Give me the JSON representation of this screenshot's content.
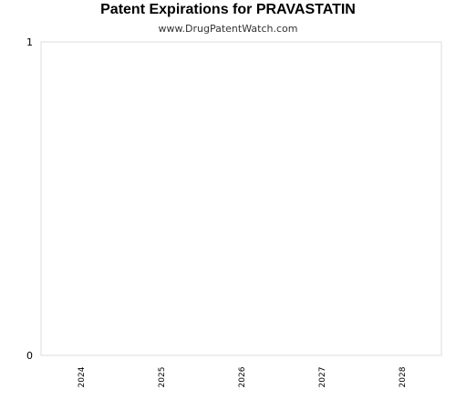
{
  "chart_data": {
    "type": "bar",
    "title": "Patent Expirations for PRAVASTATIN",
    "subtitle": "www.DrugPatentWatch.com",
    "categories": [
      "2024",
      "2025",
      "2026",
      "2027",
      "2028"
    ],
    "values": [
      0,
      0,
      0,
      0,
      0
    ],
    "xlabel": "",
    "ylabel": "",
    "ylim": [
      0,
      1
    ],
    "yticks": [
      "0",
      "1"
    ],
    "grid": false,
    "legend": "none",
    "colors": {
      "plot_border": "#dddddd",
      "text": "#000000",
      "bar": "#4a7ebb"
    }
  }
}
